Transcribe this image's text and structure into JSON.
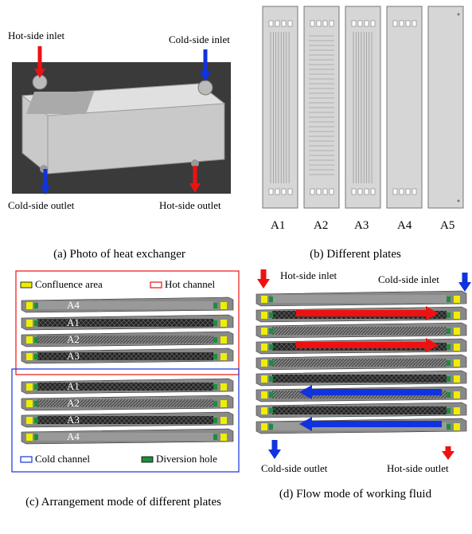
{
  "panel_a": {
    "labels": [
      "Hot-side inlet",
      "Cold-side inlet",
      "Cold-side outlet",
      "Hot-side outlet"
    ],
    "caption": "(a) Photo of heat exchanger"
  },
  "panel_b": {
    "plates": [
      "A1",
      "A2",
      "A3",
      "A4",
      "A5"
    ],
    "caption": "(b) Different plates"
  },
  "panel_c": {
    "legend": [
      "Confluence area",
      "Hot channel",
      "Cold channel",
      "Diversion hole"
    ],
    "plates": [
      "A4",
      "A1",
      "A2",
      "A3",
      "A1",
      "A2",
      "A3",
      "A4"
    ],
    "caption": "(c) Arrangement mode of different plates"
  },
  "panel_d": {
    "labels": [
      "Hot-side inlet",
      "Cold-side inlet",
      "Cold-side outlet",
      "Hot-side outlet"
    ],
    "caption": "(d) Flow mode of working fluid"
  }
}
